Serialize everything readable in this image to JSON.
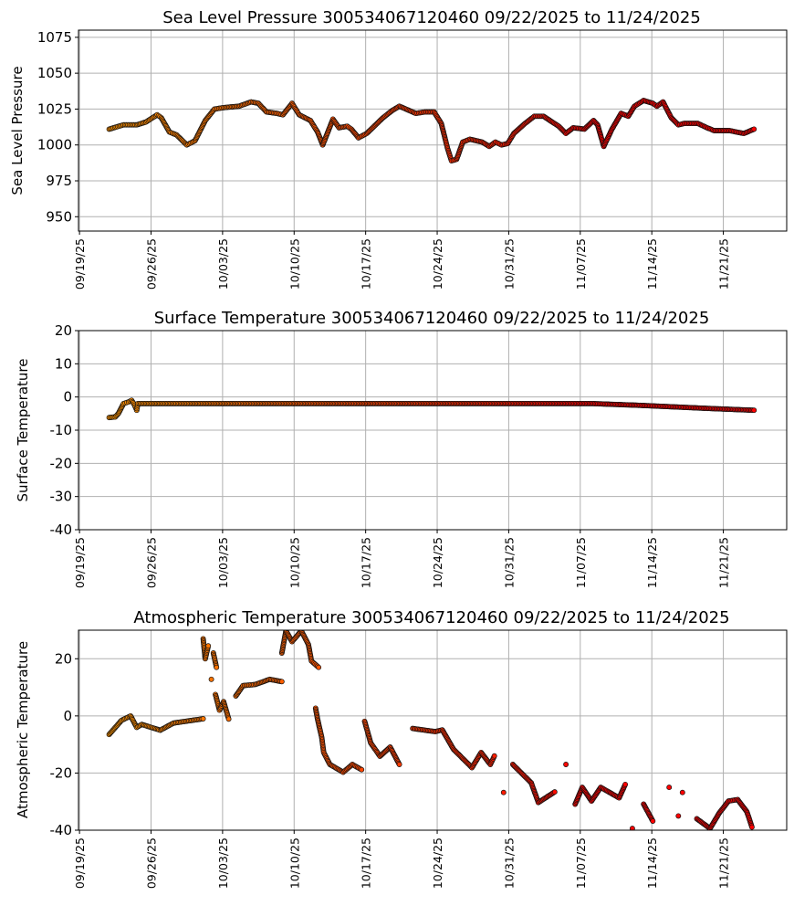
{
  "chart_data": [
    {
      "type": "scatter",
      "title": "Sea Level Pressure 300534067120460  09/22/2025 to 11/24/2025",
      "xlabel": "",
      "ylabel": "Sea Level Pressure",
      "x_unit": "days since 09/19/25",
      "xlim": [
        -0.1,
        69.2
      ],
      "ylim": [
        940,
        1080
      ],
      "yticks": [
        950,
        975,
        1000,
        1025,
        1050,
        1075
      ],
      "xticks": [
        0,
        7,
        14,
        21,
        28,
        35,
        42,
        49,
        56,
        63
      ],
      "xtick_labels": [
        "09/19/25",
        "09/26/25",
        "10/03/25",
        "10/10/25",
        "10/17/25",
        "10/24/25",
        "10/31/25",
        "11/07/25",
        "11/14/25",
        "11/21/25"
      ],
      "grid": true,
      "color_start": "#ff9400",
      "color_end": "#ff0000",
      "connect_gap": 100,
      "points": [
        [
          2.9,
          1011
        ],
        [
          4.3,
          1014
        ],
        [
          5.6,
          1014
        ],
        [
          6.5,
          1016
        ],
        [
          7.6,
          1021
        ],
        [
          8.0,
          1019
        ],
        [
          8.8,
          1009
        ],
        [
          9.5,
          1007
        ],
        [
          10.5,
          1000
        ],
        [
          11.3,
          1003
        ],
        [
          12.3,
          1017
        ],
        [
          13.2,
          1025
        ],
        [
          14.1,
          1026
        ],
        [
          15.6,
          1027
        ],
        [
          16.8,
          1030
        ],
        [
          17.5,
          1029
        ],
        [
          18.3,
          1023
        ],
        [
          19.3,
          1022
        ],
        [
          19.9,
          1021
        ],
        [
          20.8,
          1029
        ],
        [
          21.5,
          1021
        ],
        [
          22.6,
          1017
        ],
        [
          23.3,
          1009
        ],
        [
          23.8,
          1000
        ],
        [
          24.8,
          1018
        ],
        [
          25.4,
          1012
        ],
        [
          26.2,
          1013
        ],
        [
          26.6,
          1011
        ],
        [
          27.3,
          1005
        ],
        [
          28.1,
          1008
        ],
        [
          29.7,
          1019
        ],
        [
          30.6,
          1024
        ],
        [
          31.3,
          1027
        ],
        [
          32.9,
          1022
        ],
        [
          33.8,
          1023
        ],
        [
          34.7,
          1023
        ],
        [
          35.4,
          1015
        ],
        [
          36.0,
          998
        ],
        [
          36.4,
          989
        ],
        [
          36.9,
          990
        ],
        [
          37.5,
          1002
        ],
        [
          38.2,
          1004
        ],
        [
          39.4,
          1002
        ],
        [
          40.1,
          999
        ],
        [
          40.7,
          1002
        ],
        [
          41.3,
          1000
        ],
        [
          41.9,
          1001
        ],
        [
          42.5,
          1008
        ],
        [
          43.6,
          1015
        ],
        [
          44.5,
          1020
        ],
        [
          45.4,
          1020
        ],
        [
          46.9,
          1013
        ],
        [
          47.6,
          1008
        ],
        [
          48.3,
          1012
        ],
        [
          49.4,
          1011
        ],
        [
          50.3,
          1017
        ],
        [
          50.7,
          1014
        ],
        [
          51.3,
          999
        ],
        [
          52.1,
          1011
        ],
        [
          53.0,
          1022
        ],
        [
          53.7,
          1020
        ],
        [
          54.3,
          1027
        ],
        [
          55.2,
          1031
        ],
        [
          56.1,
          1029
        ],
        [
          56.5,
          1027
        ],
        [
          57.1,
          1030
        ],
        [
          57.9,
          1019
        ],
        [
          58.6,
          1014
        ],
        [
          59.2,
          1015
        ],
        [
          60.5,
          1015
        ],
        [
          61.4,
          1012
        ],
        [
          62.1,
          1010
        ],
        [
          63.6,
          1010
        ],
        [
          65.0,
          1008
        ],
        [
          66.0,
          1011
        ]
      ]
    },
    {
      "type": "scatter",
      "title": "Surface Temperature 300534067120460  09/22/2025 to 11/24/2025",
      "xlabel": "",
      "ylabel": "Surface Temperature",
      "x_unit": "days since 09/19/25",
      "xlim": [
        -0.1,
        69.2
      ],
      "ylim": [
        -40,
        20
      ],
      "yticks": [
        -40,
        -30,
        -20,
        -10,
        0,
        10,
        20
      ],
      "xticks": [
        0,
        7,
        14,
        21,
        28,
        35,
        42,
        49,
        56,
        63
      ],
      "xtick_labels": [
        "09/19/25",
        "09/26/25",
        "10/03/25",
        "10/10/25",
        "10/17/25",
        "10/24/25",
        "10/31/25",
        "11/07/25",
        "11/14/25",
        "11/21/25"
      ],
      "grid": true,
      "color_start": "#ff9400",
      "color_end": "#ff0000",
      "connect_gap": 100,
      "points": [
        [
          2.9,
          -6.2
        ],
        [
          3.5,
          -6
        ],
        [
          3.8,
          -5
        ],
        [
          4.3,
          -2
        ],
        [
          4.8,
          -1.5
        ],
        [
          5.1,
          -1
        ],
        [
          5.4,
          -2.5
        ],
        [
          5.6,
          -4
        ],
        [
          5.7,
          -2
        ],
        [
          20,
          -2
        ],
        [
          35,
          -2
        ],
        [
          50.3,
          -2
        ],
        [
          52,
          -2.2
        ],
        [
          54.7,
          -2.5
        ],
        [
          58.3,
          -3
        ],
        [
          61.9,
          -3.5
        ],
        [
          66.0,
          -4
        ]
      ]
    },
    {
      "type": "scatter",
      "title": "Atmospheric Temperature 300534067120460  09/22/2025 to 11/24/2025",
      "xlabel": "",
      "ylabel": "Atmospheric Temperature",
      "x_unit": "days since 09/19/25",
      "xlim": [
        -0.1,
        69.2
      ],
      "ylim": [
        -40,
        30
      ],
      "yticks": [
        -40,
        -20,
        0,
        20
      ],
      "xticks": [
        0,
        7,
        14,
        21,
        28,
        35,
        42,
        49,
        56,
        63
      ],
      "xtick_labels": [
        "09/19/25",
        "09/26/25",
        "10/03/25",
        "10/10/25",
        "10/17/25",
        "10/24/25",
        "10/31/25",
        "11/07/25",
        "11/14/25",
        "11/21/25"
      ],
      "grid": true,
      "color_start": "#ff9400",
      "color_end": "#ff0000",
      "connect_gap": 8,
      "points": [
        [
          2.9,
          -6.5
        ],
        [
          4.1,
          -1.6
        ],
        [
          5.0,
          0
        ],
        [
          5.6,
          -4
        ],
        [
          6.1,
          -3
        ],
        [
          7.9,
          -5
        ],
        [
          9.2,
          -2.5
        ],
        [
          12.1,
          -1
        ],
        [
          12.1,
          27
        ],
        [
          12.3,
          20
        ],
        [
          12.6,
          24.5
        ],
        [
          12.9,
          12.8
        ],
        [
          13.1,
          22
        ],
        [
          13.4,
          17
        ],
        [
          13.3,
          7.5
        ],
        [
          13.7,
          2
        ],
        [
          14.1,
          5
        ],
        [
          14.6,
          -1.1
        ],
        [
          15.3,
          7
        ],
        [
          16.0,
          10.6
        ],
        [
          17.2,
          11
        ],
        [
          18.6,
          12.8
        ],
        [
          19.8,
          12
        ],
        [
          19.8,
          22
        ],
        [
          20.2,
          29.8
        ],
        [
          20.8,
          26
        ],
        [
          21.7,
          29.8
        ],
        [
          22.4,
          25
        ],
        [
          22.7,
          19.2
        ],
        [
          23.4,
          17
        ],
        [
          23.1,
          2.7
        ],
        [
          23.3,
          -1.2
        ],
        [
          23.7,
          -7.5
        ],
        [
          23.9,
          -12.8
        ],
        [
          24.5,
          -17
        ],
        [
          25.8,
          -19.7
        ],
        [
          26.7,
          -17
        ],
        [
          27.6,
          -18.8
        ],
        [
          27.9,
          -1.9
        ],
        [
          28.5,
          -9.5
        ],
        [
          29.4,
          -14.1
        ],
        [
          30.4,
          -10.9
        ],
        [
          31.3,
          -17
        ],
        [
          32.6,
          -4.4
        ],
        [
          34.8,
          -5.5
        ],
        [
          35.5,
          -4.9
        ],
        [
          36.6,
          -11.7
        ],
        [
          38.4,
          -18.1
        ],
        [
          39.3,
          -12.8
        ],
        [
          40.2,
          -17
        ],
        [
          40.6,
          -14
        ],
        [
          41.5,
          -26.8
        ],
        [
          42.4,
          -17
        ],
        [
          44.2,
          -23.4
        ],
        [
          44.9,
          -30.3
        ],
        [
          46.5,
          -26.6
        ],
        [
          47.6,
          -17
        ],
        [
          48.5,
          -30.9
        ],
        [
          49.2,
          -25
        ],
        [
          50.1,
          -29.8
        ],
        [
          51.0,
          -25
        ],
        [
          52.8,
          -28.7
        ],
        [
          53.4,
          -24
        ],
        [
          54.1,
          -39.4
        ],
        [
          55.2,
          -30.9
        ],
        [
          56.1,
          -36.8
        ],
        [
          57.7,
          -25
        ],
        [
          58.6,
          -35
        ],
        [
          59.0,
          -26.8
        ],
        [
          60.4,
          -36
        ],
        [
          61.7,
          -39.4
        ],
        [
          62.6,
          -34
        ],
        [
          63.5,
          -29.8
        ],
        [
          64.4,
          -29.3
        ],
        [
          65.3,
          -33.5
        ],
        [
          65.8,
          -38.9
        ]
      ]
    }
  ]
}
